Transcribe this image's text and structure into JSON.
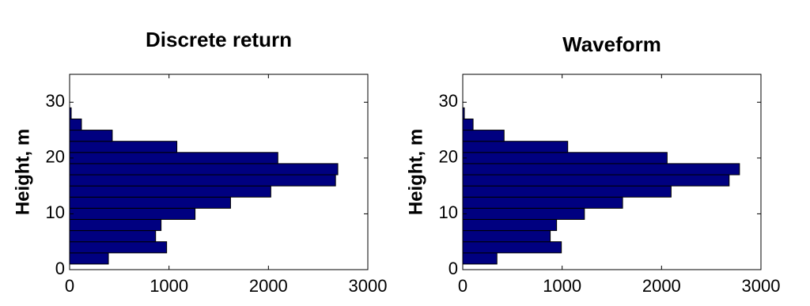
{
  "chart_data": [
    {
      "type": "histogram",
      "orientation": "horizontal",
      "title": "Discrete return",
      "y_label": "Height, m",
      "bins": [
        1,
        3,
        5,
        7,
        9,
        11,
        13,
        15,
        17,
        19,
        21,
        23,
        25,
        27,
        29
      ],
      "values": [
        390,
        976,
        865,
        920,
        1262,
        1619,
        2024,
        2675,
        2698,
        2095,
        1079,
        429,
        119,
        16
      ],
      "color": "#000080",
      "xlim": [
        0,
        3000
      ],
      "xticks": [
        0,
        1000,
        2000,
        3000
      ],
      "ylim": [
        0,
        35
      ],
      "yticks": [
        0,
        10,
        20,
        30
      ]
    },
    {
      "type": "histogram",
      "orientation": "horizontal",
      "title": "Waveform",
      "y_label": "Height, m",
      "bins": [
        1,
        3,
        5,
        7,
        9,
        11,
        13,
        15,
        17,
        19,
        21,
        23,
        25,
        27,
        29
      ],
      "values": [
        344,
        992,
        880,
        944,
        1224,
        1608,
        2096,
        2680,
        2784,
        2056,
        1056,
        416,
        104,
        16
      ],
      "color": "#000080",
      "xlim": [
        0,
        3000
      ],
      "xticks": [
        0,
        1000,
        2000,
        3000
      ],
      "ylim": [
        0,
        35
      ],
      "yticks": [
        0,
        10,
        20,
        30
      ]
    }
  ]
}
